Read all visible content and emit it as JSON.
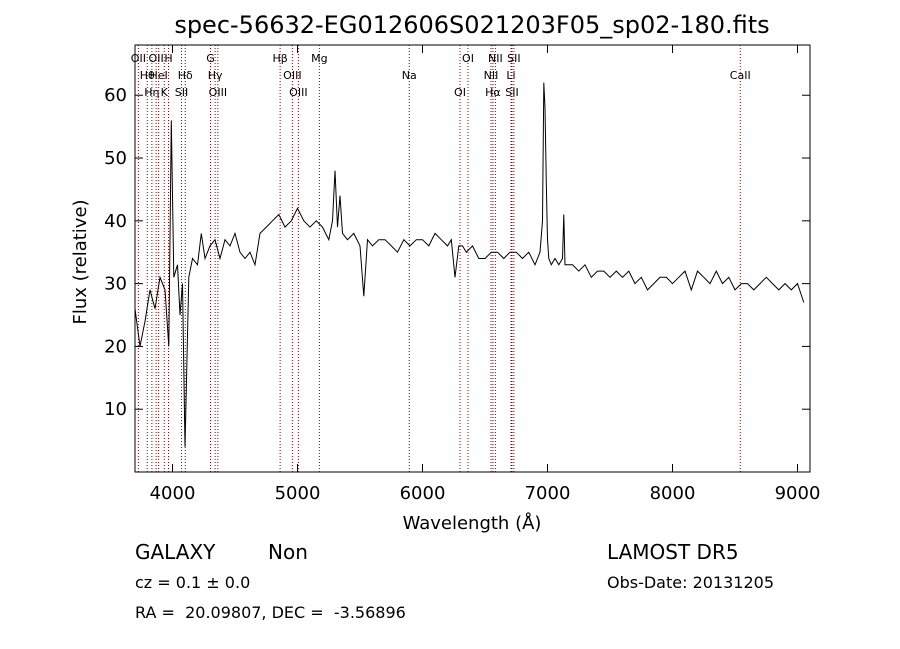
{
  "chart_data": {
    "type": "line",
    "title": "spec-56632-EG012606S021203F05_sp02-180.fits",
    "xlabel": "Wavelength (Å)",
    "ylabel": "Flux (relative)",
    "xlim": [
      3700,
      9100
    ],
    "ylim": [
      0,
      68
    ],
    "xticks": [
      4000,
      5000,
      6000,
      7000,
      8000,
      9000
    ],
    "yticks": [
      10,
      20,
      30,
      40,
      50,
      60
    ],
    "grid": false,
    "line_color": "#000000",
    "marker_color": "#8b0000",
    "spectral_lines": [
      {
        "name": "OII",
        "wavelength": 3727
      },
      {
        "name": "Hθ",
        "wavelength": 3798
      },
      {
        "name": "Hη",
        "wavelength": 3835
      },
      {
        "name": "OII",
        "wavelength": 3869
      },
      {
        "name": "HeI",
        "wavelength": 3889
      },
      {
        "name": "K",
        "wavelength": 3934
      },
      {
        "name": "H",
        "wavelength": 3968
      },
      {
        "name": "Hδ",
        "wavelength": 4102
      },
      {
        "name": "SII",
        "wavelength": 4072
      },
      {
        "name": "G",
        "wavelength": 4304
      },
      {
        "name": "Hγ",
        "wavelength": 4341
      },
      {
        "name": "OIII",
        "wavelength": 4363
      },
      {
        "name": "Hβ",
        "wavelength": 4861
      },
      {
        "name": "OIII",
        "wavelength": 4959
      },
      {
        "name": "OIII",
        "wavelength": 5007
      },
      {
        "name": "Mg",
        "wavelength": 5175
      },
      {
        "name": "Na",
        "wavelength": 5894
      },
      {
        "name": "OI",
        "wavelength": 6300
      },
      {
        "name": "OI",
        "wavelength": 6364
      },
      {
        "name": "NII",
        "wavelength": 6548
      },
      {
        "name": "Hα",
        "wavelength": 6563
      },
      {
        "name": "NII",
        "wavelength": 6583
      },
      {
        "name": "Li",
        "wavelength": 6708
      },
      {
        "name": "SII",
        "wavelength": 6716
      },
      {
        "name": "SII",
        "wavelength": 6731
      },
      {
        "name": "CaII",
        "wavelength": 8542
      }
    ],
    "series": [
      {
        "x": [
          3700,
          3740,
          3780,
          3820,
          3860,
          3900,
          3940,
          3970,
          3990,
          4010,
          4040,
          4060,
          4080,
          4100,
          4130,
          4160,
          4200,
          4230,
          4260,
          4300,
          4340,
          4380,
          4420,
          4460,
          4500,
          4540,
          4580,
          4620,
          4660,
          4700,
          4750,
          4800,
          4850,
          4900,
          4950,
          5000,
          5050,
          5100,
          5150,
          5200,
          5250,
          5280,
          5300,
          5320,
          5340,
          5360,
          5400,
          5450,
          5500,
          5530,
          5560,
          5600,
          5650,
          5700,
          5750,
          5800,
          5850,
          5900,
          5950,
          6000,
          6050,
          6100,
          6150,
          6200,
          6230,
          6260,
          6290,
          6320,
          6350,
          6400,
          6450,
          6500,
          6550,
          6600,
          6650,
          6700,
          6750,
          6800,
          6850,
          6900,
          6940,
          6960,
          6970,
          6980,
          6990,
          7000,
          7010,
          7030,
          7060,
          7090,
          7120,
          7130,
          7140,
          7160,
          7200,
          7250,
          7300,
          7350,
          7400,
          7450,
          7500,
          7550,
          7600,
          7650,
          7700,
          7750,
          7800,
          7850,
          7900,
          7950,
          8000,
          8050,
          8100,
          8150,
          8200,
          8250,
          8300,
          8350,
          8400,
          8450,
          8500,
          8550,
          8600,
          8650,
          8700,
          8750,
          8800,
          8850,
          8900,
          8950,
          9000,
          9050
        ],
        "y": [
          26,
          20,
          24,
          29,
          26,
          31,
          29,
          20,
          56,
          31,
          33,
          25,
          30,
          4,
          31,
          34,
          33,
          38,
          34,
          36,
          37,
          34,
          37,
          36,
          38,
          35,
          34,
          35,
          33,
          38,
          39,
          40,
          41,
          39,
          40,
          42,
          40,
          39,
          40,
          39,
          37,
          40,
          48,
          39,
          44,
          38,
          37,
          38,
          36,
          28,
          37,
          36,
          37,
          37,
          36,
          35,
          37,
          36,
          37,
          37,
          36,
          38,
          37,
          36,
          37,
          31,
          36,
          36,
          35,
          36,
          34,
          34,
          35,
          35,
          34,
          35,
          35,
          34,
          35,
          33,
          35,
          40,
          62,
          58,
          46,
          37,
          34,
          33,
          34,
          33,
          34,
          41,
          33,
          33,
          33,
          32,
          33,
          31,
          32,
          32,
          31,
          32,
          31,
          32,
          30,
          31,
          29,
          30,
          31,
          31,
          30,
          31,
          32,
          29,
          32,
          31,
          30,
          32,
          30,
          31,
          29,
          30,
          30,
          29,
          30,
          31,
          30,
          29,
          30,
          29,
          30,
          27
        ]
      }
    ]
  },
  "info": {
    "class_label": "GALAXY",
    "subclass_label": "Non",
    "cz_text": "cz = 0.1 ± 0.0",
    "coords_text": "RA =  20.09807, DEC =  -3.56896",
    "survey": "LAMOST DR5",
    "obs_date": "Obs-Date: 20131205"
  }
}
